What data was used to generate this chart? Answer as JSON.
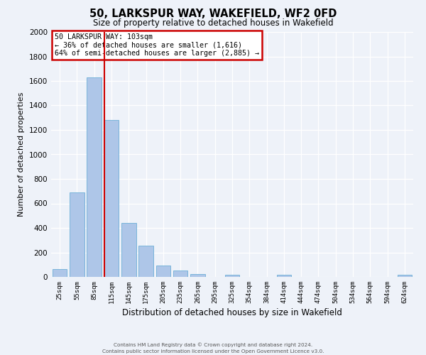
{
  "title": "50, LARKSPUR WAY, WAKEFIELD, WF2 0FD",
  "subtitle": "Size of property relative to detached houses in Wakefield",
  "xlabel": "Distribution of detached houses by size in Wakefield",
  "ylabel": "Number of detached properties",
  "categories": [
    "25sqm",
    "55sqm",
    "85sqm",
    "115sqm",
    "145sqm",
    "175sqm",
    "205sqm",
    "235sqm",
    "265sqm",
    "295sqm",
    "325sqm",
    "354sqm",
    "384sqm",
    "414sqm",
    "444sqm",
    "474sqm",
    "504sqm",
    "534sqm",
    "564sqm",
    "594sqm",
    "624sqm"
  ],
  "bar_values": [
    65,
    690,
    1630,
    1280,
    440,
    255,
    90,
    50,
    25,
    0,
    20,
    0,
    0,
    15,
    0,
    0,
    0,
    0,
    0,
    0,
    15
  ],
  "bar_color": "#aec6e8",
  "bar_edge_color": "#6baed6",
  "background_color": "#eef2f9",
  "grid_color": "#ffffff",
  "ylim": [
    0,
    2000
  ],
  "yticks": [
    0,
    200,
    400,
    600,
    800,
    1000,
    1200,
    1400,
    1600,
    1800,
    2000
  ],
  "vline_color": "#cc0000",
  "vline_x": 2.6,
  "annotation_title": "50 LARKSPUR WAY: 103sqm",
  "annotation_line1": "← 36% of detached houses are smaller (1,616)",
  "annotation_line2": "64% of semi-detached houses are larger (2,885) →",
  "annotation_box_color": "#ffffff",
  "annotation_box_edge_color": "#cc0000",
  "footer1": "Contains HM Land Registry data © Crown copyright and database right 2024.",
  "footer2": "Contains public sector information licensed under the Open Government Licence v3.0."
}
